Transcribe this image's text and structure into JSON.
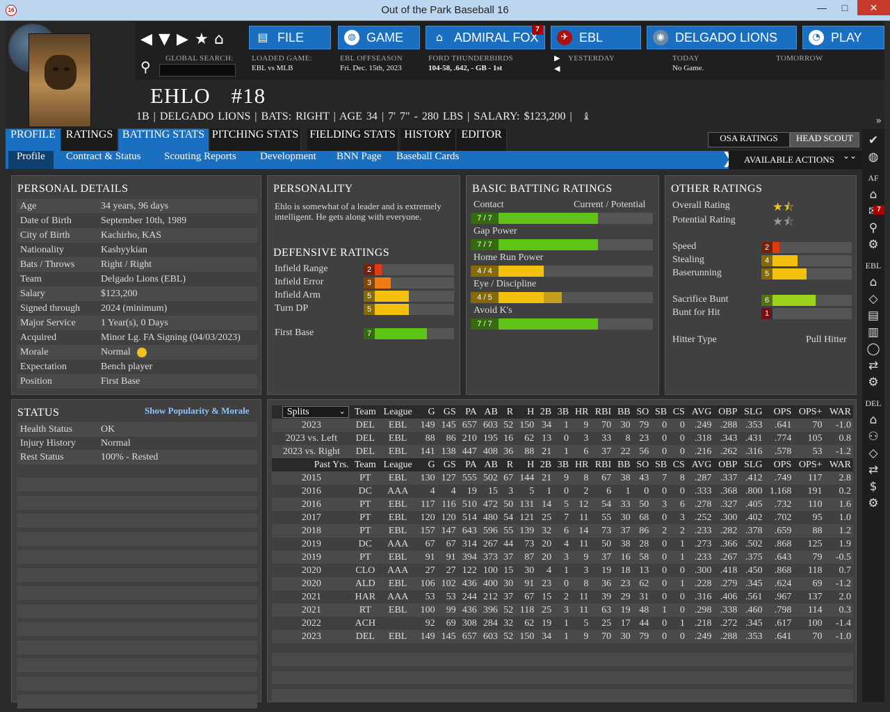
{
  "window": {
    "title": "Out of the Park Baseball 16",
    "app_icon": "16",
    "min": "—",
    "max": "□",
    "close": "✕"
  },
  "nav": {
    "file": "FILE",
    "game": "GAME",
    "manager": "ADMIRAL FOX",
    "manager_badge": "7",
    "league": "EBL",
    "team": "DELGADO LIONS",
    "play": "PLAY"
  },
  "info": {
    "search_label": "GLOBAL SEARCH:",
    "loaded_label": "LOADED GAME:",
    "loaded_value": "EBL vs MLB",
    "offseason_label": "EBL OFFSEASON",
    "offseason_value": "Fri. Dec. 15th, 2023",
    "team_label": "FORD THUNDERBIRDS",
    "team_value": "104-58, .642, - GB - 1st",
    "yesterday_label": "YESTERDAY",
    "today_label": "TODAY",
    "today_value": "No Game.",
    "tomorrow_label": "TOMORROW"
  },
  "player": {
    "name": "EHLO",
    "number": "#18",
    "info_line": "1B | DELGADO LIONS  |  BATS: RIGHT  |  AGE 34  |  7' 7\" - 280 LBS  |  SALARY: $123,200  |"
  },
  "tabs": [
    "PROFILE",
    "RATINGS",
    "BATTING STATS",
    "PITCHING STATS",
    "FIELDING STATS",
    "HISTORY",
    "EDITOR"
  ],
  "right_tabs": {
    "osa": "OSA RATINGS",
    "scout": "HEAD SCOUT"
  },
  "subtabs": [
    "Profile",
    "Contract & Status",
    "Scouting Reports",
    "Development",
    "BNN Page",
    "Baseball Cards"
  ],
  "available_actions": "AVAILABLE ACTIONS",
  "sidebar": {
    "af": "AF",
    "af_badge": "7",
    "ebl": "EBL",
    "del": "DEL"
  },
  "personal": {
    "title": "PERSONAL DETAILS",
    "rows": [
      {
        "k": "Age",
        "v": "34 years, 96 days"
      },
      {
        "k": "Date of Birth",
        "v": "September 10th, 1989"
      },
      {
        "k": "City of Birth",
        "v": "Kachirho, KAS"
      },
      {
        "k": "Nationality",
        "v": "Kashyykian"
      },
      {
        "k": "Bats / Throws",
        "v": "Right / Right"
      },
      {
        "k": "Team",
        "v": "Delgado Lions (EBL)"
      },
      {
        "k": "Salary",
        "v": "$123,200"
      },
      {
        "k": "Signed through",
        "v": "2024 (minimum)"
      },
      {
        "k": "Major Service",
        "v": "1 Year(s), 0 Days"
      },
      {
        "k": "Acquired",
        "v": "Minor Lg. FA Signing (04/03/2023)"
      },
      {
        "k": "Morale",
        "v": "Normal"
      },
      {
        "k": "Expectation",
        "v": "Bench player"
      },
      {
        "k": "Position",
        "v": "First Base"
      }
    ]
  },
  "personality": {
    "title": "PERSONALITY",
    "text": "Ehlo is somewhat of a leader and is extremely intelligent. He gets along with everyone.",
    "def_title": "DEFENSIVE RATINGS",
    "def": [
      {
        "label": "Infield Range",
        "value": "2",
        "fraction": 0.2,
        "color": "#e23a12"
      },
      {
        "label": "Infield Error",
        "value": "3",
        "fraction": 0.3,
        "color": "#ee7a12"
      },
      {
        "label": "Infield Arm",
        "value": "5",
        "fraction": 0.5,
        "color": "#f3c10d"
      },
      {
        "label": "Turn DP",
        "value": "5",
        "fraction": 0.5,
        "color": "#f3c10d"
      }
    ],
    "first_base": {
      "label": "First Base",
      "value": "7",
      "fraction": 0.7,
      "color": "#5fc417"
    }
  },
  "batting": {
    "title": "BASIC BATTING RATINGS",
    "cp_label": "Current / Potential",
    "rows": [
      {
        "label": "Contact",
        "value": "7 / 7",
        "fraction": 0.7,
        "pot": 0.7,
        "color": "#5fc417"
      },
      {
        "label": "Gap Power",
        "value": "7 / 7",
        "fraction": 0.7,
        "pot": 0.7,
        "color": "#5fc417"
      },
      {
        "label": "Home Run Power",
        "value": "4 / 4",
        "fraction": 0.4,
        "pot": 0.4,
        "color": "#f3c10d"
      },
      {
        "label": "Eye / Discipline",
        "value": "4 / 5",
        "fraction": 0.4,
        "pot": 0.5,
        "color": "#f3c10d"
      },
      {
        "label": "Avoid K's",
        "value": "7 / 7",
        "fraction": 0.7,
        "pot": 0.7,
        "color": "#5fc417"
      }
    ]
  },
  "other": {
    "title": "OTHER RATINGS",
    "overall_label": "Overall Rating",
    "overall_stars": 1.5,
    "potential_label": "Potential Rating",
    "potential_stars": 1.5,
    "run": [
      {
        "label": "Speed",
        "value": "2",
        "fraction": 0.2,
        "color": "#e23a12"
      },
      {
        "label": "Stealing",
        "value": "4",
        "fraction": 0.4,
        "color": "#f3c10d"
      },
      {
        "label": "Baserunning",
        "value": "5",
        "fraction": 0.5,
        "color": "#f3c10d"
      }
    ],
    "bunt": [
      {
        "label": "Sacrifice Bunt",
        "value": "6",
        "fraction": 0.6,
        "color": "#9ad21c"
      },
      {
        "label": "Bunt for Hit",
        "value": "1",
        "fraction": 0.1,
        "color": "#e2121e"
      }
    ],
    "hitter_type_label": "Hitter Type",
    "hitter_type": "Pull Hitter"
  },
  "status": {
    "title": "STATUS",
    "link": "Show Popularity & Morale",
    "rows": [
      {
        "k": "Health Status",
        "v": "OK"
      },
      {
        "k": "Injury History",
        "v": "Normal"
      },
      {
        "k": "Rest Status",
        "v": "100% - Rested"
      }
    ]
  },
  "stats": {
    "splits_label": "Splits",
    "columns": [
      "Team",
      "League",
      "G",
      "GS",
      "PA",
      "AB",
      "R",
      "H",
      "2B",
      "3B",
      "HR",
      "RBI",
      "BB",
      "SO",
      "SB",
      "CS",
      "AVG",
      "OBP",
      "SLG",
      "OPS",
      "OPS+",
      "WAR"
    ],
    "past_label": "Past Yrs.",
    "splits": [
      [
        "2023",
        "DEL",
        "EBL",
        "149",
        "145",
        "657",
        "603",
        "52",
        "150",
        "34",
        "1",
        "9",
        "70",
        "30",
        "79",
        "0",
        "0",
        ".249",
        ".288",
        ".353",
        ".641",
        "70",
        "-1.0"
      ],
      [
        "2023 vs. Left",
        "DEL",
        "EBL",
        "88",
        "86",
        "210",
        "195",
        "16",
        "62",
        "13",
        "0",
        "3",
        "33",
        "8",
        "23",
        "0",
        "0",
        ".318",
        ".343",
        ".431",
        ".774",
        "105",
        "0.8"
      ],
      [
        "2023 vs. Right",
        "DEL",
        "EBL",
        "141",
        "138",
        "447",
        "408",
        "36",
        "88",
        "21",
        "1",
        "6",
        "37",
        "22",
        "56",
        "0",
        "0",
        ".216",
        ".262",
        ".316",
        ".578",
        "53",
        "-1.2"
      ]
    ],
    "past": [
      [
        "2015",
        "PT",
        "EBL",
        "130",
        "127",
        "555",
        "502",
        "67",
        "144",
        "21",
        "9",
        "8",
        "67",
        "38",
        "43",
        "7",
        "8",
        ".287",
        ".337",
        ".412",
        ".749",
        "117",
        "2.8"
      ],
      [
        "2016",
        "DC",
        "AAA",
        "4",
        "4",
        "19",
        "15",
        "3",
        "5",
        "1",
        "0",
        "2",
        "6",
        "1",
        "0",
        "0",
        "0",
        ".333",
        ".368",
        ".800",
        "1.168",
        "191",
        "0.2"
      ],
      [
        "2016",
        "PT",
        "EBL",
        "117",
        "116",
        "510",
        "472",
        "50",
        "131",
        "14",
        "5",
        "12",
        "54",
        "33",
        "50",
        "3",
        "6",
        ".278",
        ".327",
        ".405",
        ".732",
        "110",
        "1.6"
      ],
      [
        "2017",
        "PT",
        "EBL",
        "120",
        "120",
        "514",
        "480",
        "54",
        "121",
        "25",
        "7",
        "11",
        "55",
        "30",
        "68",
        "0",
        "3",
        ".252",
        ".300",
        ".402",
        ".702",
        "95",
        "1.0"
      ],
      [
        "2018",
        "PT",
        "EBL",
        "157",
        "147",
        "643",
        "596",
        "55",
        "139",
        "32",
        "6",
        "14",
        "73",
        "37",
        "86",
        "2",
        "2",
        ".233",
        ".282",
        ".378",
        ".659",
        "88",
        "1.2"
      ],
      [
        "2019",
        "DC",
        "AAA",
        "67",
        "67",
        "314",
        "267",
        "44",
        "73",
        "20",
        "4",
        "11",
        "50",
        "38",
        "28",
        "0",
        "1",
        ".273",
        ".366",
        ".502",
        ".868",
        "125",
        "1.9"
      ],
      [
        "2019",
        "PT",
        "EBL",
        "91",
        "91",
        "394",
        "373",
        "37",
        "87",
        "20",
        "3",
        "9",
        "37",
        "16",
        "58",
        "0",
        "1",
        ".233",
        ".267",
        ".375",
        ".643",
        "79",
        "-0.5"
      ],
      [
        "2020",
        "CLO",
        "AAA",
        "27",
        "27",
        "122",
        "100",
        "15",
        "30",
        "4",
        "1",
        "3",
        "19",
        "18",
        "13",
        "0",
        "0",
        ".300",
        ".418",
        ".450",
        ".868",
        "118",
        "0.7"
      ],
      [
        "2020",
        "ALD",
        "EBL",
        "106",
        "102",
        "436",
        "400",
        "30",
        "91",
        "23",
        "0",
        "8",
        "36",
        "23",
        "62",
        "0",
        "1",
        ".228",
        ".279",
        ".345",
        ".624",
        "69",
        "-1.2"
      ],
      [
        "2021",
        "HAR",
        "AAA",
        "53",
        "53",
        "244",
        "212",
        "37",
        "67",
        "15",
        "2",
        "11",
        "39",
        "29",
        "31",
        "0",
        "0",
        ".316",
        ".406",
        ".561",
        ".967",
        "137",
        "2.0"
      ],
      [
        "2021",
        "RT",
        "EBL",
        "100",
        "99",
        "436",
        "396",
        "52",
        "118",
        "25",
        "3",
        "11",
        "63",
        "19",
        "48",
        "1",
        "0",
        ".298",
        ".338",
        ".460",
        ".798",
        "114",
        "0.3"
      ],
      [
        "2022",
        "ACH",
        "",
        "92",
        "69",
        "308",
        "284",
        "32",
        "62",
        "19",
        "1",
        "5",
        "25",
        "17",
        "44",
        "0",
        "1",
        ".218",
        ".272",
        ".345",
        ".617",
        "100",
        "-1.4"
      ],
      [
        "2023",
        "DEL",
        "EBL",
        "149",
        "145",
        "657",
        "603",
        "52",
        "150",
        "34",
        "1",
        "9",
        "70",
        "30",
        "79",
        "0",
        "0",
        ".249",
        ".288",
        ".353",
        ".641",
        "70",
        "-1.0"
      ]
    ]
  }
}
